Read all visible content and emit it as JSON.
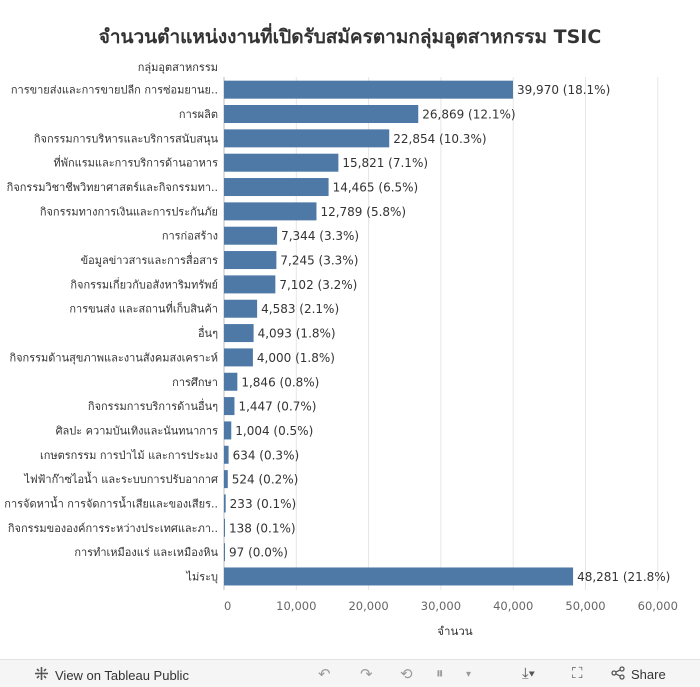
{
  "title": "จำนวนตำแหน่งงานที่เปิดรับสมัครตามกลุ่มอุตสาหกรรม TSIC",
  "footer": {
    "view_label": "View on Tableau Public",
    "share_label": "Share"
  },
  "colors": {
    "bar": "#4e79a7",
    "grid": "#e6e6e6",
    "axis_text": "#666666"
  },
  "chart_data": {
    "type": "bar",
    "orientation": "horizontal",
    "row_header": "กลุ่มอุตสาหกรรม",
    "xlabel": "จำนวน",
    "xlim": [
      0,
      60000
    ],
    "xticks": [
      0,
      10000,
      20000,
      30000,
      40000,
      50000,
      60000
    ],
    "xtick_labels": [
      "0",
      "10,000",
      "20,000",
      "30,000",
      "40,000",
      "50,000",
      "60,000"
    ],
    "grid": true,
    "categories": [
      "การขายส่งและการขายปลีก การซ่อมยานย..",
      "การผลิต",
      "กิจกรรมการบริหารและบริการสนับสนุน",
      "ที่พักแรมและการบริการด้านอาหาร",
      "กิจกรรมวิชาชีพวิทยาศาสตร์และกิจกรรมทา..",
      "กิจกรรมทางการเงินและการประกันภัย",
      "การก่อสร้าง",
      "ข้อมูลข่าวสารและการสื่อสาร",
      "กิจกรรมเกี่ยวกับอสังหาริมทรัพย์",
      "การขนส่ง และสถานที่เก็บสินค้า",
      "อื่นๆ",
      "กิจกรรมด้านสุขภาพและงานสังคมสงเคราะห์",
      "การศึกษา",
      "กิจกรรมการบริการด้านอื่นๆ",
      "ศิลปะ ความบันเทิงและนันทนาการ",
      "เกษตรกรรม การป่าไม้ และการประมง",
      "ไฟฟ้าก๊าซไอน้ำ และระบบการปรับอากาศ",
      "การจัดหาน้ำ การจัดการน้ำเสียและของเสียร..",
      "กิจกรรมขององค์การระหว่างประเทศและภา..",
      "การทำเหมืองแร่ และเหมืองหิน",
      "ไม่ระบุ"
    ],
    "values": [
      39970,
      26869,
      22854,
      15821,
      14465,
      12789,
      7344,
      7245,
      7102,
      4583,
      4093,
      4000,
      1846,
      1447,
      1004,
      634,
      524,
      233,
      138,
      97,
      48281
    ],
    "data_labels": [
      "39,970 (18.1%)",
      "26,869 (12.1%)",
      "22,854 (10.3%)",
      "15,821 (7.1%)",
      "14,465 (6.5%)",
      "12,789 (5.8%)",
      "7,344 (3.3%)",
      "7,245 (3.3%)",
      "7,102 (3.2%)",
      "4,583 (2.1%)",
      "4,093 (1.8%)",
      "4,000 (1.8%)",
      "1,846 (0.8%)",
      "1,447 (0.7%)",
      "1,004 (0.5%)",
      "634 (0.3%)",
      "524 (0.2%)",
      "233 (0.1%)",
      "138 (0.1%)",
      "97 (0.0%)",
      "48,281 (21.8%)"
    ]
  }
}
